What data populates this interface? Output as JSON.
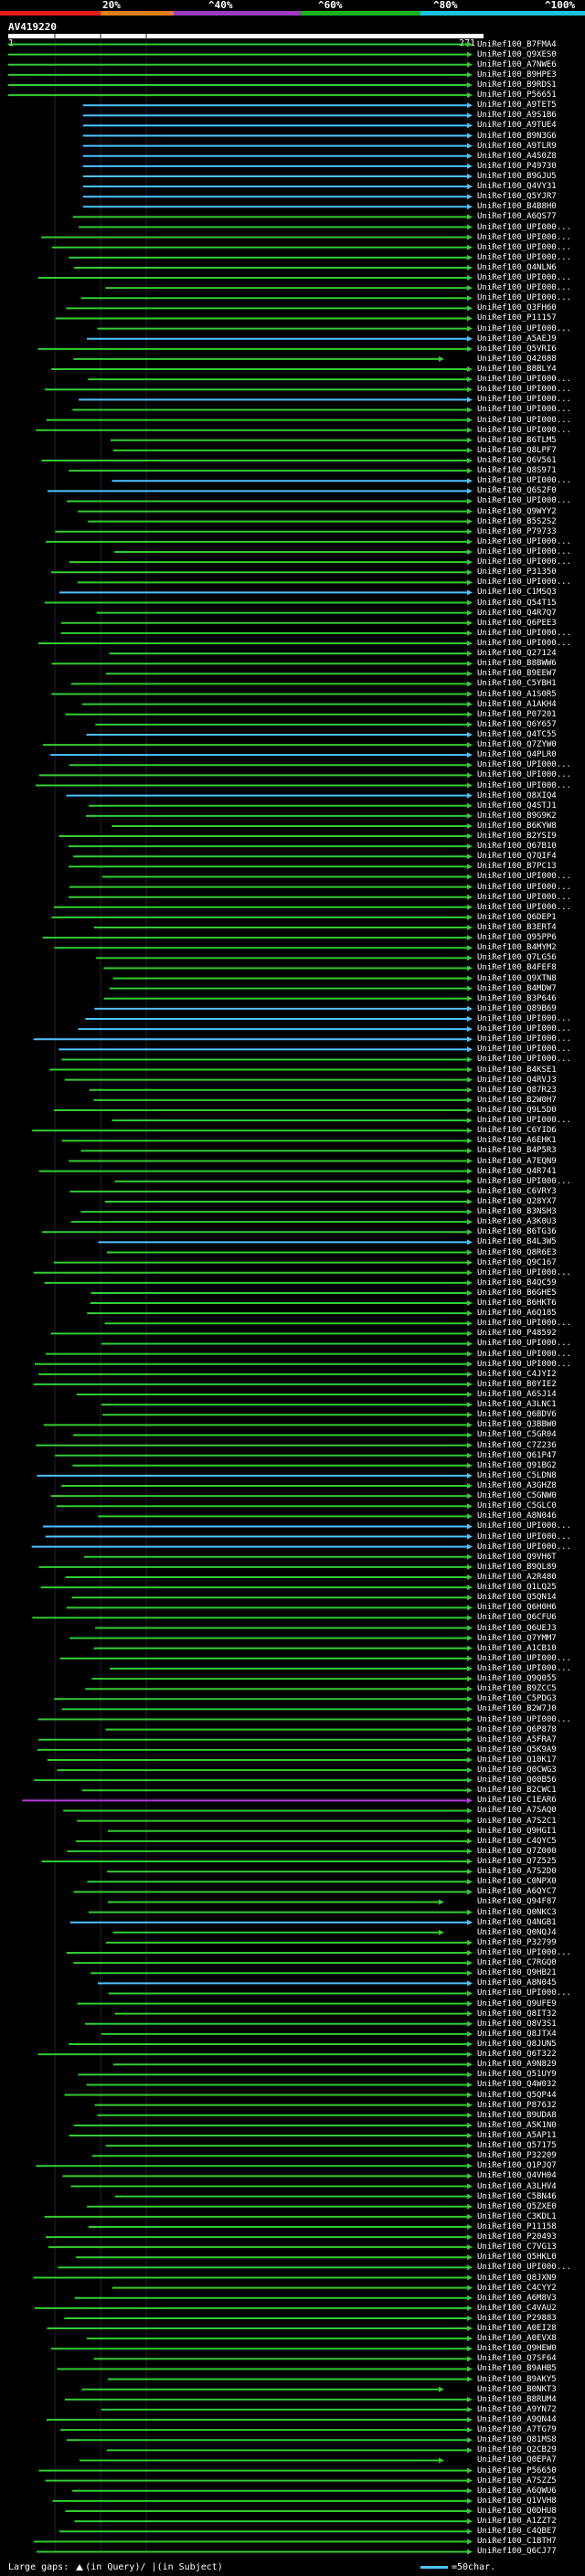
{
  "scale": {
    "labels": [
      "20%",
      "^40%",
      "^60%",
      "^80%",
      "^100%"
    ],
    "colors": [
      "#e31b1b",
      "#e37f1b",
      "#9b3bbf",
      "#1bb31b",
      "#1bc3e3"
    ]
  },
  "query": {
    "title": "AV419220",
    "start": "1",
    "end": "271"
  },
  "colors": {
    "green": "#33cc33",
    "cyan": "#4ec3ff",
    "magenta": "#b43bd6"
  },
  "hit_labels": [
    "UniRef100_B7FMA4",
    "UniRef100_Q9XES0",
    "UniRef100_A7NWE6",
    "UniRef100_B9HPE3",
    "UniRef100_B9RDS1",
    "UniRef100_P56651",
    "UniRef100_A9TET5",
    "UniRef100_A9S1B6",
    "UniRef100_A9TUE4",
    "UniRef100_B9N3G6",
    "UniRef100_A9TLR9",
    "UniRef100_A4S0Z8",
    "UniRef100_P49730",
    "UniRef100_B9GJU5",
    "UniRef100_Q4VY31",
    "UniRef100_Q5YJR7",
    "UniRef100_B4B8H0",
    "UniRef100_A6QS77",
    "UniRef100_UPI000...",
    "UniRef100_UPI000...",
    "UniRef100_UPI000...",
    "UniRef100_UPI000...",
    "UniRef100_Q4NLN6",
    "UniRef100_UPI000...",
    "UniRef100_UPI000...",
    "UniRef100_UPI000...",
    "UniRef100_Q3FH60",
    "UniRef100_P11157",
    "UniRef100_UPI000...",
    "UniRef100_A5AEJ9",
    "UniRef100_Q5VRI6",
    "UniRef100_Q42088",
    "UniRef100_B8BLY4",
    "UniRef100_UPI000...",
    "UniRef100_UPI000...",
    "UniRef100_UPI000...",
    "UniRef100_UPI000...",
    "UniRef100_UPI000...",
    "UniRef100_UPI000...",
    "UniRef100_B6TLM5",
    "UniRef100_Q8LPF7",
    "UniRef100_Q6V561",
    "UniRef100_Q8S971",
    "UniRef100_UPI000...",
    "UniRef100_Q6S2F0",
    "UniRef100_UPI000...",
    "UniRef100_Q9WYY2",
    "UniRef100_B5S2S2",
    "UniRef100_P79733",
    "UniRef100_UPI000...",
    "UniRef100_UPI000...",
    "UniRef100_UPI000...",
    "UniRef100_P31350",
    "UniRef100_UPI000...",
    "UniRef100_C1MSQ3",
    "UniRef100_Q54T15",
    "UniRef100_Q4R7Q7",
    "UniRef100_Q6PEE3",
    "UniRef100_UPI000...",
    "UniRef100_UPI000...",
    "UniRef100_Q27124",
    "UniRef100_B8BWW6",
    "UniRef100_B9EEW7",
    "UniRef100_C5YBH1",
    "UniRef100_A1S0R5",
    "UniRef100_A1AKH4",
    "UniRef100_P07201",
    "UniRef100_Q6Y657",
    "UniRef100_Q4TC55",
    "UniRef100_Q7ZYW0",
    "UniRef100_Q4PLR0",
    "UniRef100_UPI000...",
    "UniRef100_UPI000...",
    "UniRef100_UPI000...",
    "UniRef100_Q8XIQ4",
    "UniRef100_Q4STJ1",
    "UniRef100_B9G9K2",
    "UniRef100_B6KYW8",
    "UniRef100_B2YSI9",
    "UniRef100_Q67B10",
    "UniRef100_Q7QIF4",
    "UniRef100_B7PC13",
    "UniRef100_UPI000...",
    "UniRef100_UPI000...",
    "UniRef100_UPI000...",
    "UniRef100_UPI000...",
    "UniRef100_Q6DEP1",
    "UniRef100_B3ERT4",
    "UniRef100_Q95PP6",
    "UniRef100_B4MYM2",
    "UniRef100_Q7LG56",
    "UniRef100_B4FEF8",
    "UniRef100_Q9XTN8",
    "UniRef100_B4MDW7",
    "UniRef100_B3P646",
    "UniRef100_Q89B69",
    "UniRef100_UPI000...",
    "UniRef100_UPI000...",
    "UniRef100_UPI000...",
    "UniRef100_UPI000...",
    "UniRef100_UPI000...",
    "UniRef100_B4KSE1",
    "UniRef100_Q4RVJ3",
    "UniRef100_Q87R23",
    "UniRef100_B2W0H7",
    "UniRef100_Q9L5D0",
    "UniRef100_UPI000...",
    "UniRef100_C6YID6",
    "UniRef100_A6EHK1",
    "UniRef100_B4P5R3",
    "UniRef100_A7EQN9",
    "UniRef100_Q4R741",
    "UniRef100_UPI000...",
    "UniRef100_C6VRY3",
    "UniRef100_Q28YX7",
    "UniRef100_B3NSH3",
    "UniRef100_A3K0U3",
    "UniRef100_B6TG36",
    "UniRef100_B4L3W5",
    "UniRef100_Q8R6E3",
    "UniRef100_Q9C167",
    "UniRef100_UPI000...",
    "UniRef100_B4QC59",
    "UniRef100_B6GHE5",
    "UniRef100_B6HKT6",
    "UniRef100_A6Q185",
    "UniRef100_UPI000...",
    "UniRef100_P48592",
    "UniRef100_UPI000...",
    "UniRef100_UPI000...",
    "UniRef100_UPI000...",
    "UniRef100_C4JYI2",
    "UniRef100_B0YIE2",
    "UniRef100_A6SJ14",
    "UniRef100_A3LNC1",
    "UniRef100_Q6BDV6",
    "UniRef100_Q3BBW0",
    "UniRef100_C5GR04",
    "UniRef100_C7Z236",
    "UniRef100_Q61P47",
    "UniRef100_Q91BG2",
    "UniRef100_C5LDN8",
    "UniRef100_A3GHZ8",
    "UniRef100_C5GNW0",
    "UniRef100_C5GLC0",
    "UniRef100_A8N046",
    "UniRef100_UPI000...",
    "UniRef100_UPI000...",
    "UniRef100_UPI000...",
    "UniRef100_Q9VH6T",
    "UniRef100_B9QL89",
    "UniRef100_A2R480",
    "UniRef100_Q1LQ25",
    "UniRef100_Q5QN14",
    "UniRef100_Q6H0H6",
    "UniRef100_Q6CFU6",
    "UniRef100_Q6UEJ3",
    "UniRef100_Q7YMM7",
    "UniRef100_A1CB10",
    "UniRef100_UPI000...",
    "UniRef100_UPI000...",
    "UniRef100_Q9Q055",
    "UniRef100_B9ZCC5",
    "UniRef100_C5PDG3",
    "UniRef100_B2W7J0",
    "UniRef100_UPI000...",
    "UniRef100_Q6P878",
    "UniRef100_A5FRA7",
    "UniRef100_Q5K9A9",
    "UniRef100_Q10K17",
    "UniRef100_Q0CWG3",
    "UniRef100_Q00B56",
    "UniRef100_B2CWC1",
    "UniRef100_C1EAR6",
    "UniRef100_A7SAQ0",
    "UniRef100_A7S2C1",
    "UniRef100_Q9HGI1",
    "UniRef100_C4QYC5",
    "UniRef100_Q7Z000",
    "UniRef100_Q7Z525",
    "UniRef100_A7S2D0",
    "UniRef100_C0NPX0",
    "UniRef100_A6QYC7",
    "UniRef100_Q94F87",
    "UniRef100_Q0NKC3",
    "UniRef100_Q4NGB1",
    "UniRef100_Q0NQJ4",
    "UniRef100_P32799",
    "UniRef100_UPI000...",
    "UniRef100_C7RGQ0",
    "UniRef100_Q9HB21",
    "UniRef100_A8N045",
    "UniRef100_UPI000...",
    "UniRef100_Q9UFE9",
    "UniRef100_Q8IT32",
    "UniRef100_Q8V3S1",
    "UniRef100_Q8JTX4",
    "UniRef100_Q8JUN5",
    "UniRef100_Q6T322",
    "UniRef100_A9N829",
    "UniRef100_Q51UY9",
    "UniRef100_Q4W032",
    "UniRef100_Q5QP44",
    "UniRef100_P87632",
    "UniRef100_B9UDA8",
    "UniRef100_A5K1N0",
    "UniRef100_A5AP11",
    "UniRef100_Q57175",
    "UniRef100_P32209",
    "UniRef100_Q1PJQ7",
    "UniRef100_Q4VH04",
    "UniRef100_A3LHV4",
    "UniRef100_C5BN46",
    "UniRef100_Q5ZXE0",
    "UniRef100_C3KDL1",
    "UniRef100_P11158",
    "UniRef100_P20493",
    "UniRef100_C7VG13",
    "UniRef100_Q5HKL0",
    "UniRef100_UPI000...",
    "UniRef100_Q8JXN9",
    "UniRef100_C4CYY2",
    "UniRef100_A6M8V3",
    "UniRef100_C4VAU2",
    "UniRef100_P29883",
    "UniRef100_A0EI28",
    "UniRef100_A0EVX8",
    "UniRef100_Q9HEW0",
    "UniRef100_Q7SF64",
    "UniRef100_B9AHB5",
    "UniRef100_B9AKY5",
    "UniRef100_B0NKT3",
    "UniRef100_B8RUM4",
    "UniRef100_A9YN72",
    "UniRef100_A9QN44",
    "UniRef100_A7TG79",
    "UniRef100_Q81MS8",
    "UniRef100_Q2CB29",
    "UniRef100_Q0EPA7",
    "UniRef100_P56650",
    "UniRef100_A7SZZ5",
    "UniRef100_A6QWU6",
    "UniRef100_Q1VVH8",
    "UniRef100_Q0DHU8",
    "UniRef100_A1ZZT2",
    "UniRef100_C4QBE7",
    "UniRef100_C1BTH7",
    "UniRef100_Q6CJ77"
  ],
  "footer": {
    "large_gaps_label": "Large gaps:",
    "in_query_label": "(in Query)/",
    "in_subject_label": "(in Subject)",
    "scale_note": "=50char."
  }
}
